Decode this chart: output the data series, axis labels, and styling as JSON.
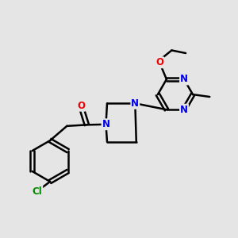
{
  "bg_color": "#e5e5e5",
  "bond_color": "#000000",
  "bond_width": 1.8,
  "atom_colors": {
    "N": "#0000ee",
    "O": "#ee0000",
    "Cl": "#008800",
    "C": "#000000"
  },
  "font_size": 8.5,
  "fig_width": 3.0,
  "fig_height": 3.0,
  "dpi": 100,
  "xlim": [
    0,
    10
  ],
  "ylim": [
    0,
    10
  ]
}
